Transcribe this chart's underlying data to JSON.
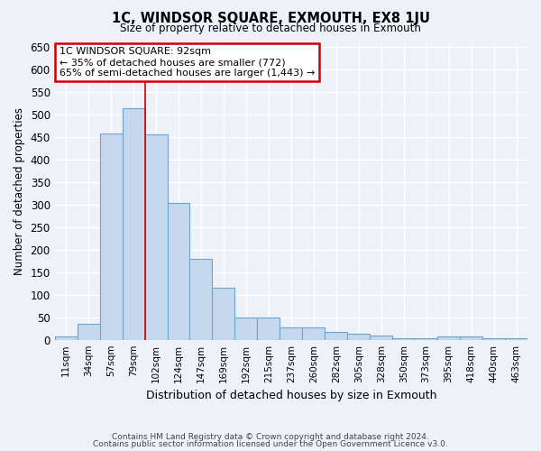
{
  "title": "1C, WINDSOR SQUARE, EXMOUTH, EX8 1JU",
  "subtitle": "Size of property relative to detached houses in Exmouth",
  "xlabel": "Distribution of detached houses by size in Exmouth",
  "ylabel": "Number of detached properties",
  "categories": [
    "11sqm",
    "34sqm",
    "57sqm",
    "79sqm",
    "102sqm",
    "124sqm",
    "147sqm",
    "169sqm",
    "192sqm",
    "215sqm",
    "237sqm",
    "260sqm",
    "282sqm",
    "305sqm",
    "328sqm",
    "350sqm",
    "373sqm",
    "395sqm",
    "418sqm",
    "440sqm",
    "463sqm"
  ],
  "values": [
    7,
    35,
    458,
    515,
    457,
    305,
    180,
    115,
    50,
    50,
    27,
    27,
    18,
    13,
    9,
    3,
    3,
    7,
    7,
    3,
    3
  ],
  "bar_color": "#c5d8ed",
  "bar_edge_color": "#6ea3cc",
  "annotation_title": "1C WINDSOR SQUARE: 92sqm",
  "annotation_line1": "← 35% of detached houses are smaller (772)",
  "annotation_line2": "65% of semi-detached houses are larger (1,443) →",
  "annotation_box_color": "#ffffff",
  "annotation_box_edge": "#cc0000",
  "vline_x": 3.5,
  "vline_color": "#cc0000",
  "ylim": [
    0,
    660
  ],
  "yticks": [
    0,
    50,
    100,
    150,
    200,
    250,
    300,
    350,
    400,
    450,
    500,
    550,
    600,
    650
  ],
  "background_color": "#eef2f8",
  "grid_color": "#ffffff",
  "footer_line1": "Contains HM Land Registry data © Crown copyright and database right 2024.",
  "footer_line2": "Contains public sector information licensed under the Open Government Licence v3.0."
}
